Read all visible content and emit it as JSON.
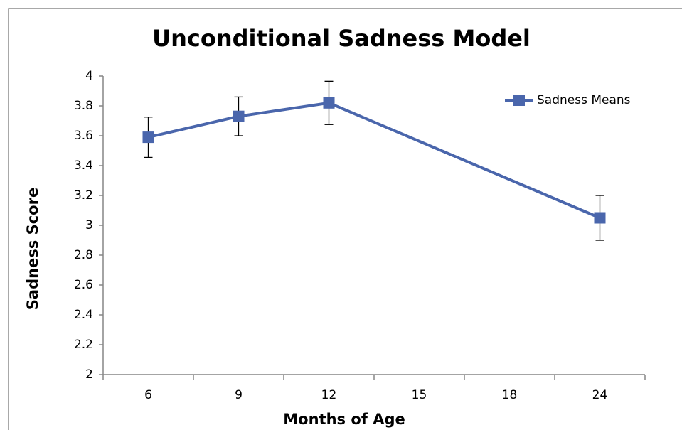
{
  "chart_data": {
    "type": "line",
    "title": "Unconditional Sadness Model",
    "x_label": "Months of Age",
    "y_label": "Sadness Score",
    "categories": [
      "6",
      "9",
      "12",
      "15",
      "18",
      "24"
    ],
    "series": [
      {
        "name": "Sadness Means",
        "color": "#4a66ac",
        "values": [
          3.59,
          3.73,
          3.82,
          null,
          null,
          3.05
        ],
        "errors": [
          0.135,
          0.13,
          0.145,
          null,
          null,
          0.15
        ]
      }
    ],
    "span_gaps": true,
    "ylim": [
      2,
      4
    ],
    "yticks": [
      2,
      2.2,
      2.4,
      2.6,
      2.8,
      3,
      3.2,
      3.4,
      3.6,
      3.8,
      4
    ],
    "legend": "upper-right"
  }
}
